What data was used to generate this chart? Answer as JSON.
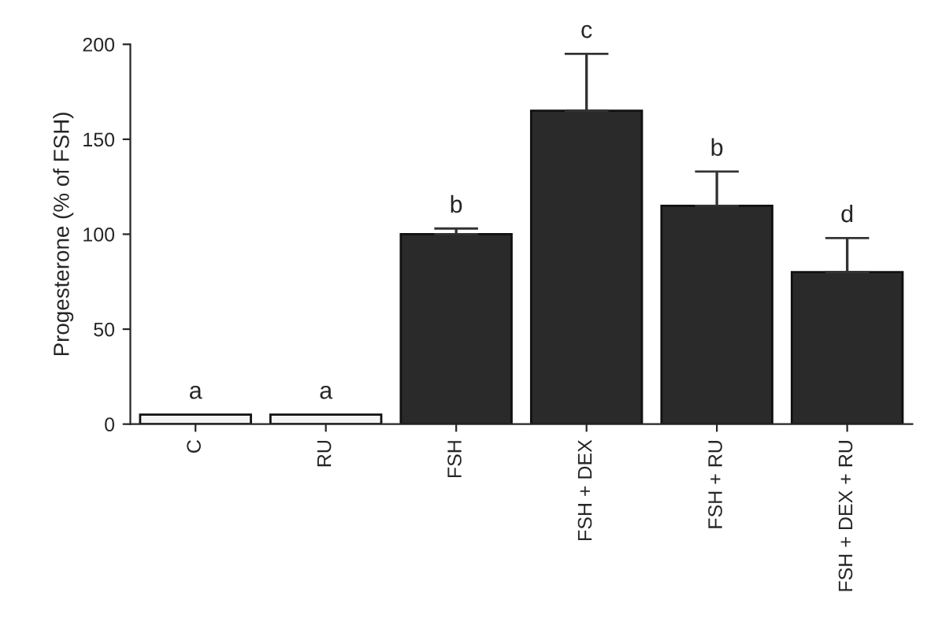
{
  "chart_data": {
    "type": "bar",
    "ylabel": "Progesterone (% of FSH)",
    "categories": [
      "C",
      "RU",
      "FSH",
      "FSH + DEX",
      "FSH + RU",
      "FSH + DEX + RU"
    ],
    "values": [
      5,
      5,
      100,
      165,
      115,
      80
    ],
    "errors": [
      null,
      null,
      3,
      30,
      18,
      18
    ],
    "colors": [
      "#f4f4f4",
      "#f4f4f4",
      "#2a2a2a",
      "#2a2a2a",
      "#2a2a2a",
      "#2a2a2a"
    ],
    "ylim": [
      0,
      200
    ],
    "yticks": [
      0,
      50,
      100,
      150,
      200
    ],
    "grid": false,
    "legend": false,
    "annotations": [
      "a",
      "a",
      "b",
      "c",
      "b",
      "d"
    ]
  }
}
